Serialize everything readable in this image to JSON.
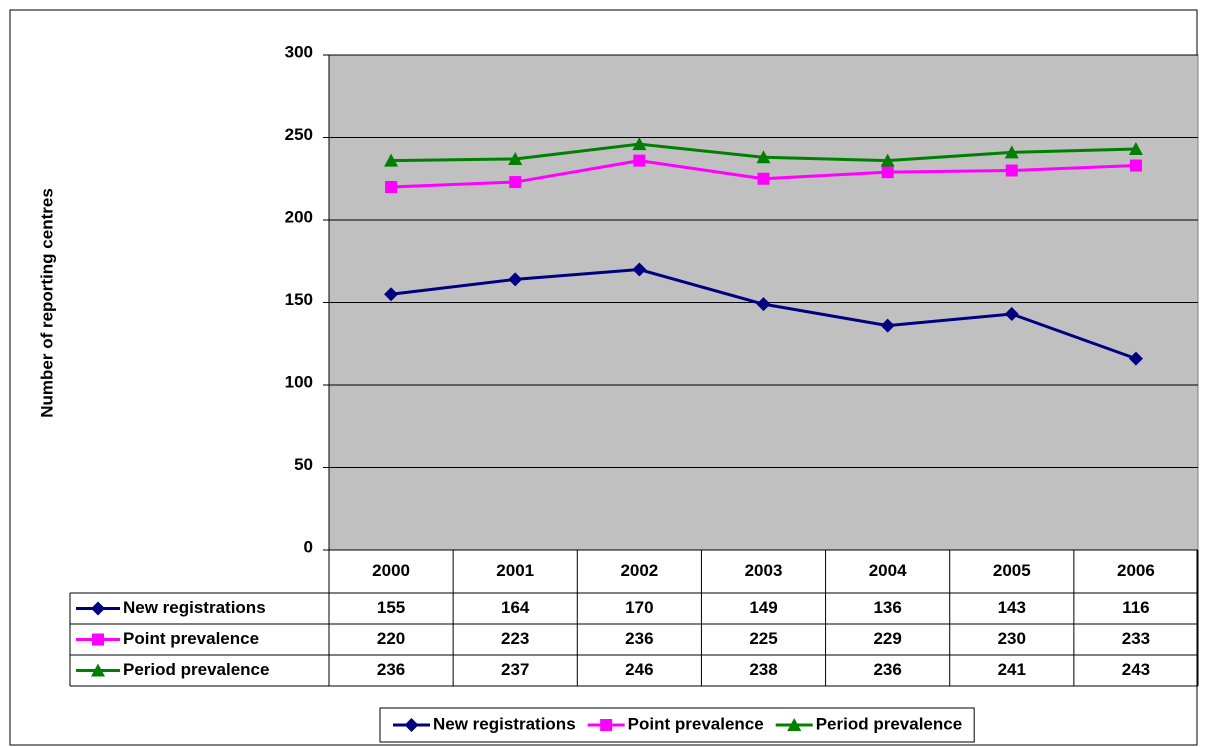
{
  "chart_data": {
    "type": "line",
    "y_label": "Number of reporting centres",
    "categories": [
      "2000",
      "2001",
      "2002",
      "2003",
      "2004",
      "2005",
      "2006"
    ],
    "series": [
      {
        "name": "New registrations",
        "color": "#000080",
        "marker": "diamond",
        "values": [
          155,
          164,
          170,
          149,
          136,
          143,
          116
        ]
      },
      {
        "name": "Point prevalence",
        "color": "#FF00FF",
        "marker": "square",
        "values": [
          220,
          223,
          236,
          225,
          229,
          230,
          233
        ]
      },
      {
        "name": "Period prevalence",
        "color": "#008000",
        "marker": "triangle",
        "values": [
          236,
          237,
          246,
          238,
          236,
          241,
          243
        ]
      }
    ],
    "ylim": [
      0,
      300
    ],
    "yticks": [
      0,
      50,
      100,
      150,
      200,
      250,
      300
    ],
    "grid": true,
    "legend": "bottom"
  }
}
